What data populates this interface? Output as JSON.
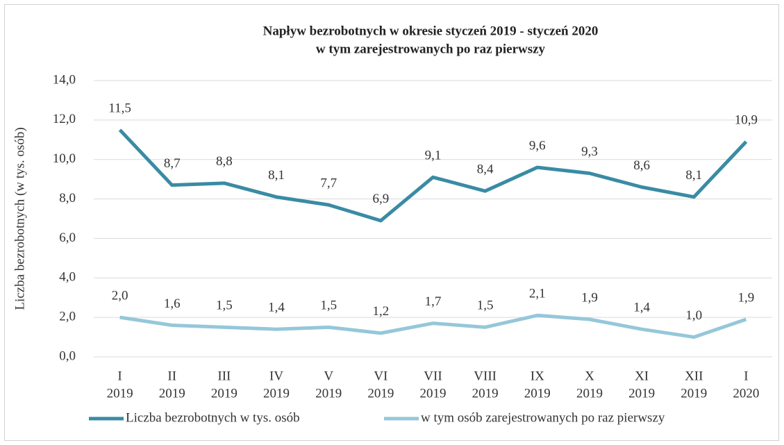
{
  "chart_data": {
    "type": "line",
    "title": [
      "Napływ  bezrobotnych w okresie styczeń 2019 - styczeń 2020",
      "w tym zarejestrowanych po raz pierwszy"
    ],
    "y_axis_label": "Liczba bezrobotnych (w tys. osób)",
    "categories": [
      [
        "I",
        "2019"
      ],
      [
        "II",
        "2019"
      ],
      [
        "III",
        "2019"
      ],
      [
        "IV",
        "2019"
      ],
      [
        "V",
        "2019"
      ],
      [
        "VI",
        "2019"
      ],
      [
        "VII",
        "2019"
      ],
      [
        "VIII",
        "2019"
      ],
      [
        "IX",
        "2019"
      ],
      [
        "X",
        "2019"
      ],
      [
        "XI",
        "2019"
      ],
      [
        "XII",
        "2019"
      ],
      [
        "I",
        "2020"
      ]
    ],
    "ylim": [
      0,
      14
    ],
    "yticks": [
      {
        "value": 0,
        "label": "0,0"
      },
      {
        "value": 2,
        "label": "2,0"
      },
      {
        "value": 4,
        "label": "4,0"
      },
      {
        "value": 6,
        "label": "6,0"
      },
      {
        "value": 8,
        "label": "8,0"
      },
      {
        "value": 10,
        "label": "10,0"
      },
      {
        "value": 12,
        "label": "12,0"
      },
      {
        "value": 14,
        "label": "14,0"
      }
    ],
    "grid": true,
    "legend": "bottom",
    "series": [
      {
        "name": "Liczba bezrobotnych w tys. osób",
        "color": "#3a8ba4",
        "values": [
          11.5,
          8.7,
          8.8,
          8.1,
          7.7,
          6.9,
          9.1,
          8.4,
          9.6,
          9.3,
          8.6,
          8.1,
          10.9
        ],
        "value_labels": [
          "11,5",
          "8,7",
          "8,8",
          "8,1",
          "7,7",
          "6,9",
          "9,1",
          "8,4",
          "9,6",
          "9,3",
          "8,6",
          "8,1",
          "10,9"
        ]
      },
      {
        "name": "w tym osób zarejestrowanych po raz pierwszy",
        "color": "#95c7d9",
        "values": [
          2.0,
          1.6,
          1.5,
          1.4,
          1.5,
          1.2,
          1.7,
          1.5,
          2.1,
          1.9,
          1.4,
          1.0,
          1.9
        ],
        "value_labels": [
          "2,0",
          "1,6",
          "1,5",
          "1,4",
          "1,5",
          "1,2",
          "1,7",
          "1,5",
          "2,1",
          "1,9",
          "1,4",
          "1,0",
          "1,9"
        ]
      }
    ]
  }
}
